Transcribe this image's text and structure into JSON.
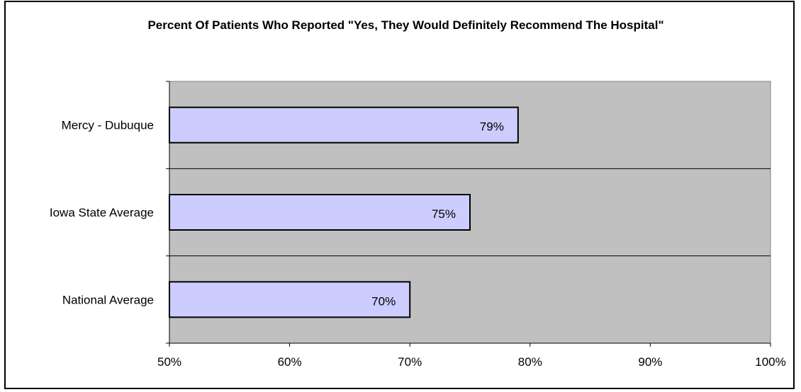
{
  "chart_data": {
    "type": "bar",
    "orientation": "horizontal",
    "title": "Percent Of Patients Who Reported \"Yes, They Would Definitely Recommend The Hospital\"",
    "categories": [
      "Mercy - Dubuque",
      "Iowa State Average",
      "National Average"
    ],
    "values": [
      79,
      75,
      70
    ],
    "data_labels": [
      "79%",
      "75%",
      "70%"
    ],
    "xlim": [
      50,
      100
    ],
    "x_ticks": [
      50,
      60,
      70,
      80,
      90,
      100
    ],
    "x_tick_labels": [
      "50%",
      "60%",
      "70%",
      "80%",
      "90%",
      "100%"
    ],
    "xlabel": "",
    "ylabel": "",
    "grid": "horizontal category dividers",
    "legend": "none",
    "colors": {
      "plot_background": "#c0c0c0",
      "bar_fill": "#ccccff",
      "bar_stroke": "#000000",
      "divider": "#000000"
    }
  }
}
